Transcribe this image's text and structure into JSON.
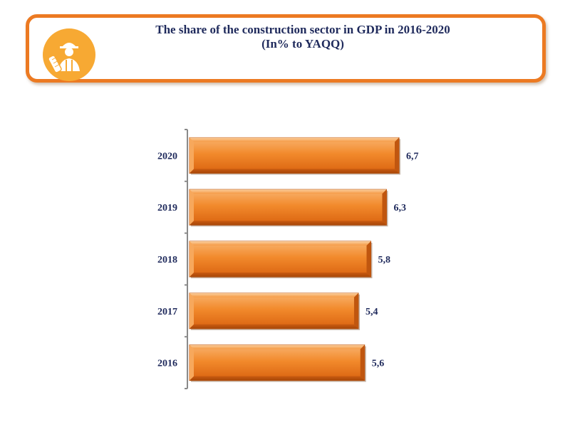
{
  "header": {
    "title": "The share of the construction  sector in GDP in 2016-2020",
    "subtitle": "(In% to YAQQ)",
    "icon": "construction-worker-icon"
  },
  "colors": {
    "accent": "#ec7a22",
    "bar_light": "#f6a052",
    "bar_dark": "#d9620f",
    "icon_bg": "#f7a933",
    "text": "#1f2a5c"
  },
  "chart_data": {
    "type": "bar",
    "orientation": "horizontal",
    "title": "The share of the construction  sector in GDP in 2016-2020",
    "subtitle": "(In% to YAQQ)",
    "categories": [
      "2020",
      "2019",
      "2018",
      "2017",
      "2016"
    ],
    "values": [
      6.7,
      6.3,
      5.8,
      5.4,
      5.6
    ],
    "value_labels": [
      "6,7",
      "6,3",
      "5,8",
      "5,4",
      "5,6"
    ],
    "xlim": [
      0,
      6.7
    ],
    "xlabel": "",
    "ylabel": "",
    "grid": false,
    "legend": "none"
  }
}
